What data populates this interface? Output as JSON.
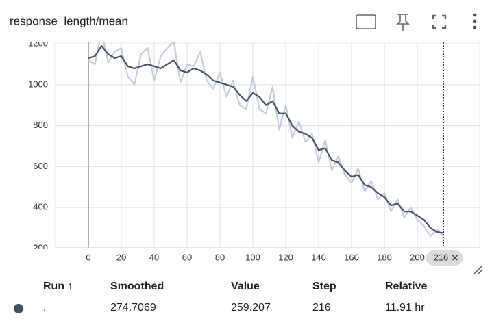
{
  "chart_data": {
    "type": "line",
    "title": "response_length/mean",
    "x": [
      0,
      4,
      8,
      12,
      16,
      20,
      24,
      28,
      32,
      36,
      40,
      44,
      48,
      52,
      56,
      60,
      64,
      68,
      72,
      76,
      80,
      84,
      88,
      92,
      96,
      100,
      104,
      108,
      112,
      116,
      120,
      124,
      128,
      132,
      136,
      140,
      144,
      148,
      152,
      156,
      160,
      164,
      168,
      172,
      176,
      180,
      184,
      188,
      192,
      196,
      200,
      204,
      208,
      212,
      216
    ],
    "series": [
      {
        "color": "#c5cbd9",
        "values": [
          1120,
          1100,
          1260,
          1110,
          1160,
          1180,
          1040,
          1000,
          1150,
          1180,
          1020,
          1140,
          1180,
          1210,
          1010,
          1100,
          1090,
          1160,
          1020,
          980,
          1060,
          940,
          1020,
          900,
          880,
          1040,
          880,
          860,
          990,
          780,
          900,
          740,
          820,
          720,
          760,
          620,
          730,
          580,
          650,
          560,
          520,
          590,
          480,
          530,
          440,
          470,
          380,
          440,
          350,
          400,
          340,
          310,
          260,
          290,
          259.207
        ]
      },
      {
        "color": "#425066",
        "values": [
          1130,
          1140,
          1190,
          1150,
          1130,
          1140,
          1090,
          1080,
          1090,
          1100,
          1090,
          1080,
          1100,
          1120,
          1070,
          1060,
          1080,
          1070,
          1050,
          1020,
          1010,
          1000,
          990,
          950,
          920,
          960,
          940,
          900,
          920,
          860,
          860,
          800,
          770,
          760,
          740,
          680,
          690,
          630,
          620,
          580,
          550,
          560,
          510,
          500,
          470,
          450,
          410,
          420,
          380,
          380,
          360,
          340,
          300,
          280,
          274.7069
        ]
      }
    ],
    "xlim": [
      -20.4,
      237.9
    ],
    "xticks": [
      0,
      20,
      40,
      60,
      80,
      100,
      120,
      140,
      160,
      180,
      200
    ],
    "ylim": [
      203,
      1207
    ],
    "yticks": [
      200,
      400,
      600,
      800,
      1000,
      1200
    ],
    "grid": true,
    "cursor_step": 216
  },
  "table": {
    "columns": [
      "Run ↑",
      "Smoothed",
      "Value",
      "Step",
      "Relative"
    ],
    "rows": [
      [
        ".",
        274.7069,
        259.207,
        216,
        "11.91 hr"
      ]
    ],
    "run_color": "#425066"
  }
}
